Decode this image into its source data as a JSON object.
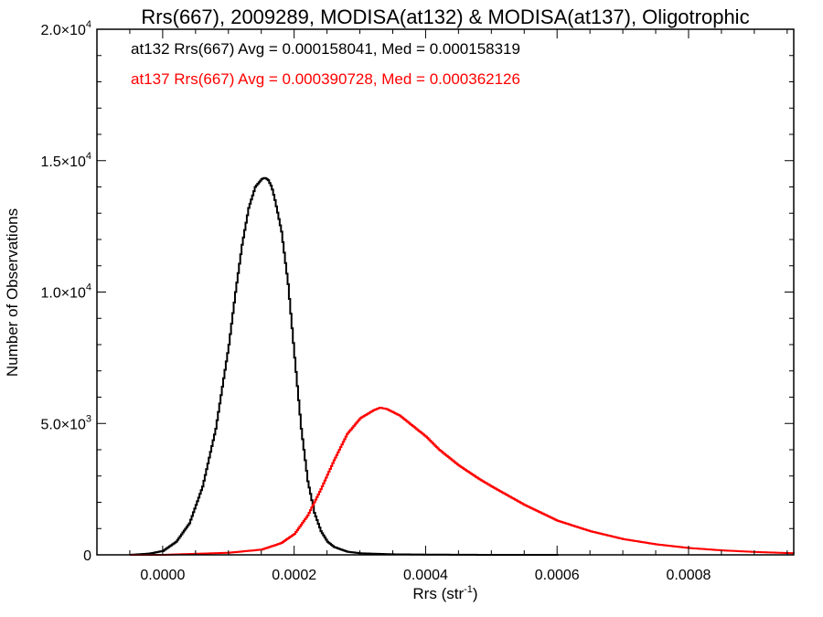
{
  "chart_data": {
    "type": "line",
    "title": "Rrs(667), 2009289, MODISA(at132) & MODISA(at137), Oligotrophic",
    "xlabel": "Rrs (str",
    "xlabel_sup": "-1",
    "xlabel_close": ")",
    "ylabel": "Number of Observations",
    "xlim": [
      -0.0001,
      0.00096
    ],
    "ylim": [
      0,
      20000
    ],
    "x_ticks": [
      0.0,
      0.0002,
      0.0004,
      0.0006,
      0.0008
    ],
    "x_tick_labels": [
      "0.0000",
      "0.0002",
      "0.0004",
      "0.0006",
      "0.0008"
    ],
    "y_ticks": [
      0,
      5000,
      10000,
      15000,
      20000
    ],
    "y_tick_labels": [
      {
        "mant": "0",
        "exp": ""
      },
      {
        "mant": "5.0×10",
        "exp": "3"
      },
      {
        "mant": "1.0×10",
        "exp": "4"
      },
      {
        "mant": "1.5×10",
        "exp": "4"
      },
      {
        "mant": "2.0×10",
        "exp": "4"
      }
    ],
    "grid": false,
    "series": [
      {
        "name": "at132",
        "color": "#000000",
        "annotation": "at132 Rrs(667) Avg = 0.000158041, Med = 0.000158319",
        "x": [
          -5e-05,
          -2e-05,
          0.0,
          2e-05,
          4e-05,
          6e-05,
          8e-05,
          0.0001,
          0.00011,
          0.00012,
          0.00013,
          0.00014,
          0.00015,
          0.000155,
          0.00016,
          0.000165,
          0.00017,
          0.00018,
          0.00019,
          0.0002,
          0.00021,
          0.00022,
          0.00023,
          0.00024,
          0.00025,
          0.00026,
          0.00028,
          0.0003,
          0.00035,
          0.0004,
          0.0005,
          0.0006
        ],
        "y": [
          0,
          50,
          150,
          500,
          1200,
          2600,
          4800,
          8000,
          10000,
          11800,
          13200,
          14000,
          14300,
          14350,
          14250,
          14000,
          13500,
          12300,
          10300,
          7500,
          4800,
          2800,
          1600,
          900,
          500,
          300,
          120,
          60,
          20,
          10,
          0,
          0
        ]
      },
      {
        "name": "at137",
        "color": "#ff0000",
        "annotation": "at137 Rrs(667) Avg = 0.000390728, Med = 0.000362126",
        "x": [
          -5e-05,
          0.0,
          0.0001,
          0.00015,
          0.00018,
          0.0002,
          0.00022,
          0.00024,
          0.00026,
          0.00028,
          0.0003,
          0.00032,
          0.00033,
          0.00034,
          0.00036,
          0.00038,
          0.0004,
          0.00042,
          0.00045,
          0.00048,
          0.0005,
          0.00055,
          0.0006,
          0.00065,
          0.0007,
          0.00075,
          0.0008,
          0.00085,
          0.0009,
          0.00096
        ],
        "y": [
          0,
          0,
          80,
          200,
          450,
          800,
          1500,
          2500,
          3600,
          4600,
          5200,
          5500,
          5600,
          5550,
          5300,
          4900,
          4500,
          4000,
          3400,
          2900,
          2600,
          1900,
          1300,
          900,
          600,
          400,
          260,
          170,
          110,
          60
        ]
      }
    ]
  }
}
